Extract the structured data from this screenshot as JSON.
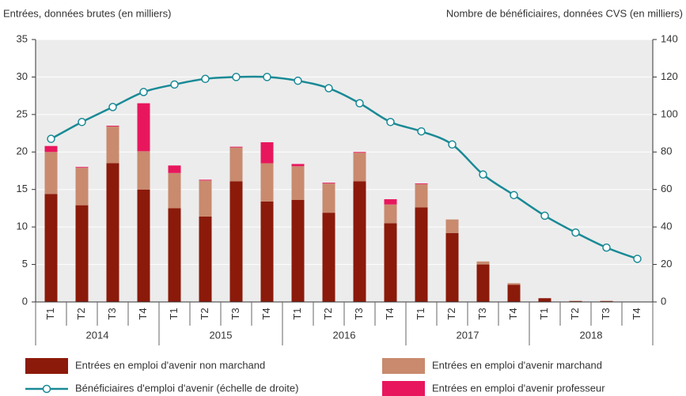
{
  "chart_data": {
    "type": "bar",
    "stacked": true,
    "y_axis_label": "Entrées, données brutes (en milliers)",
    "y2_axis_label": "Nombre de bénéficiaires, données CVS (en milliers)",
    "categories": [
      "T1",
      "T2",
      "T3",
      "T4",
      "T1",
      "T2",
      "T3",
      "T4",
      "T1",
      "T2",
      "T3",
      "T4",
      "T1",
      "T2",
      "T3",
      "T4",
      "T1",
      "T2",
      "T3",
      "T4"
    ],
    "groups": [
      "2014",
      "2015",
      "2016",
      "2017",
      "2018"
    ],
    "ylim": [
      0,
      35
    ],
    "yticks": [
      0,
      5,
      10,
      15,
      20,
      25,
      30,
      35
    ],
    "y2lim": [
      0,
      140
    ],
    "y2ticks": [
      0,
      20,
      40,
      60,
      80,
      100,
      120,
      140
    ],
    "grid": true,
    "series": [
      {
        "name": "Entrées en emploi d'avenir non marchand",
        "type": "bar",
        "color": "#8b1a0a",
        "values": [
          14.4,
          12.9,
          18.5,
          15.0,
          12.5,
          11.4,
          16.1,
          13.4,
          13.6,
          11.9,
          16.1,
          10.5,
          12.6,
          9.2,
          5.0,
          2.3,
          0.5,
          0.1,
          0.1,
          0.05
        ]
      },
      {
        "name": "Entrées en emploi d'avenir marchand",
        "type": "bar",
        "color": "#c98a6e",
        "values": [
          5.6,
          5.0,
          4.9,
          5.1,
          4.7,
          4.8,
          4.5,
          5.1,
          4.5,
          3.9,
          3.8,
          2.5,
          3.1,
          1.8,
          0.4,
          0.2,
          0,
          0.05,
          0.05,
          0
        ]
      },
      {
        "name": "Bénéficiaires d'emploi d'avenir (échelle de droite)",
        "type": "line",
        "axis": "y2",
        "color": "#1a8a96",
        "values": [
          87,
          96,
          104,
          112,
          116,
          119,
          120,
          120,
          118,
          114,
          106,
          96,
          91,
          84,
          68,
          57,
          46,
          37,
          29,
          23
        ]
      },
      {
        "name": "Entrées en emploi d'avenir professeur",
        "type": "bar",
        "color": "#e8175d",
        "values": [
          0.8,
          0.1,
          0.1,
          6.4,
          1.0,
          0.1,
          0.1,
          2.8,
          0.3,
          0.1,
          0.1,
          0.7,
          0.1,
          0,
          0,
          0,
          0,
          0,
          0,
          0
        ]
      }
    ]
  }
}
